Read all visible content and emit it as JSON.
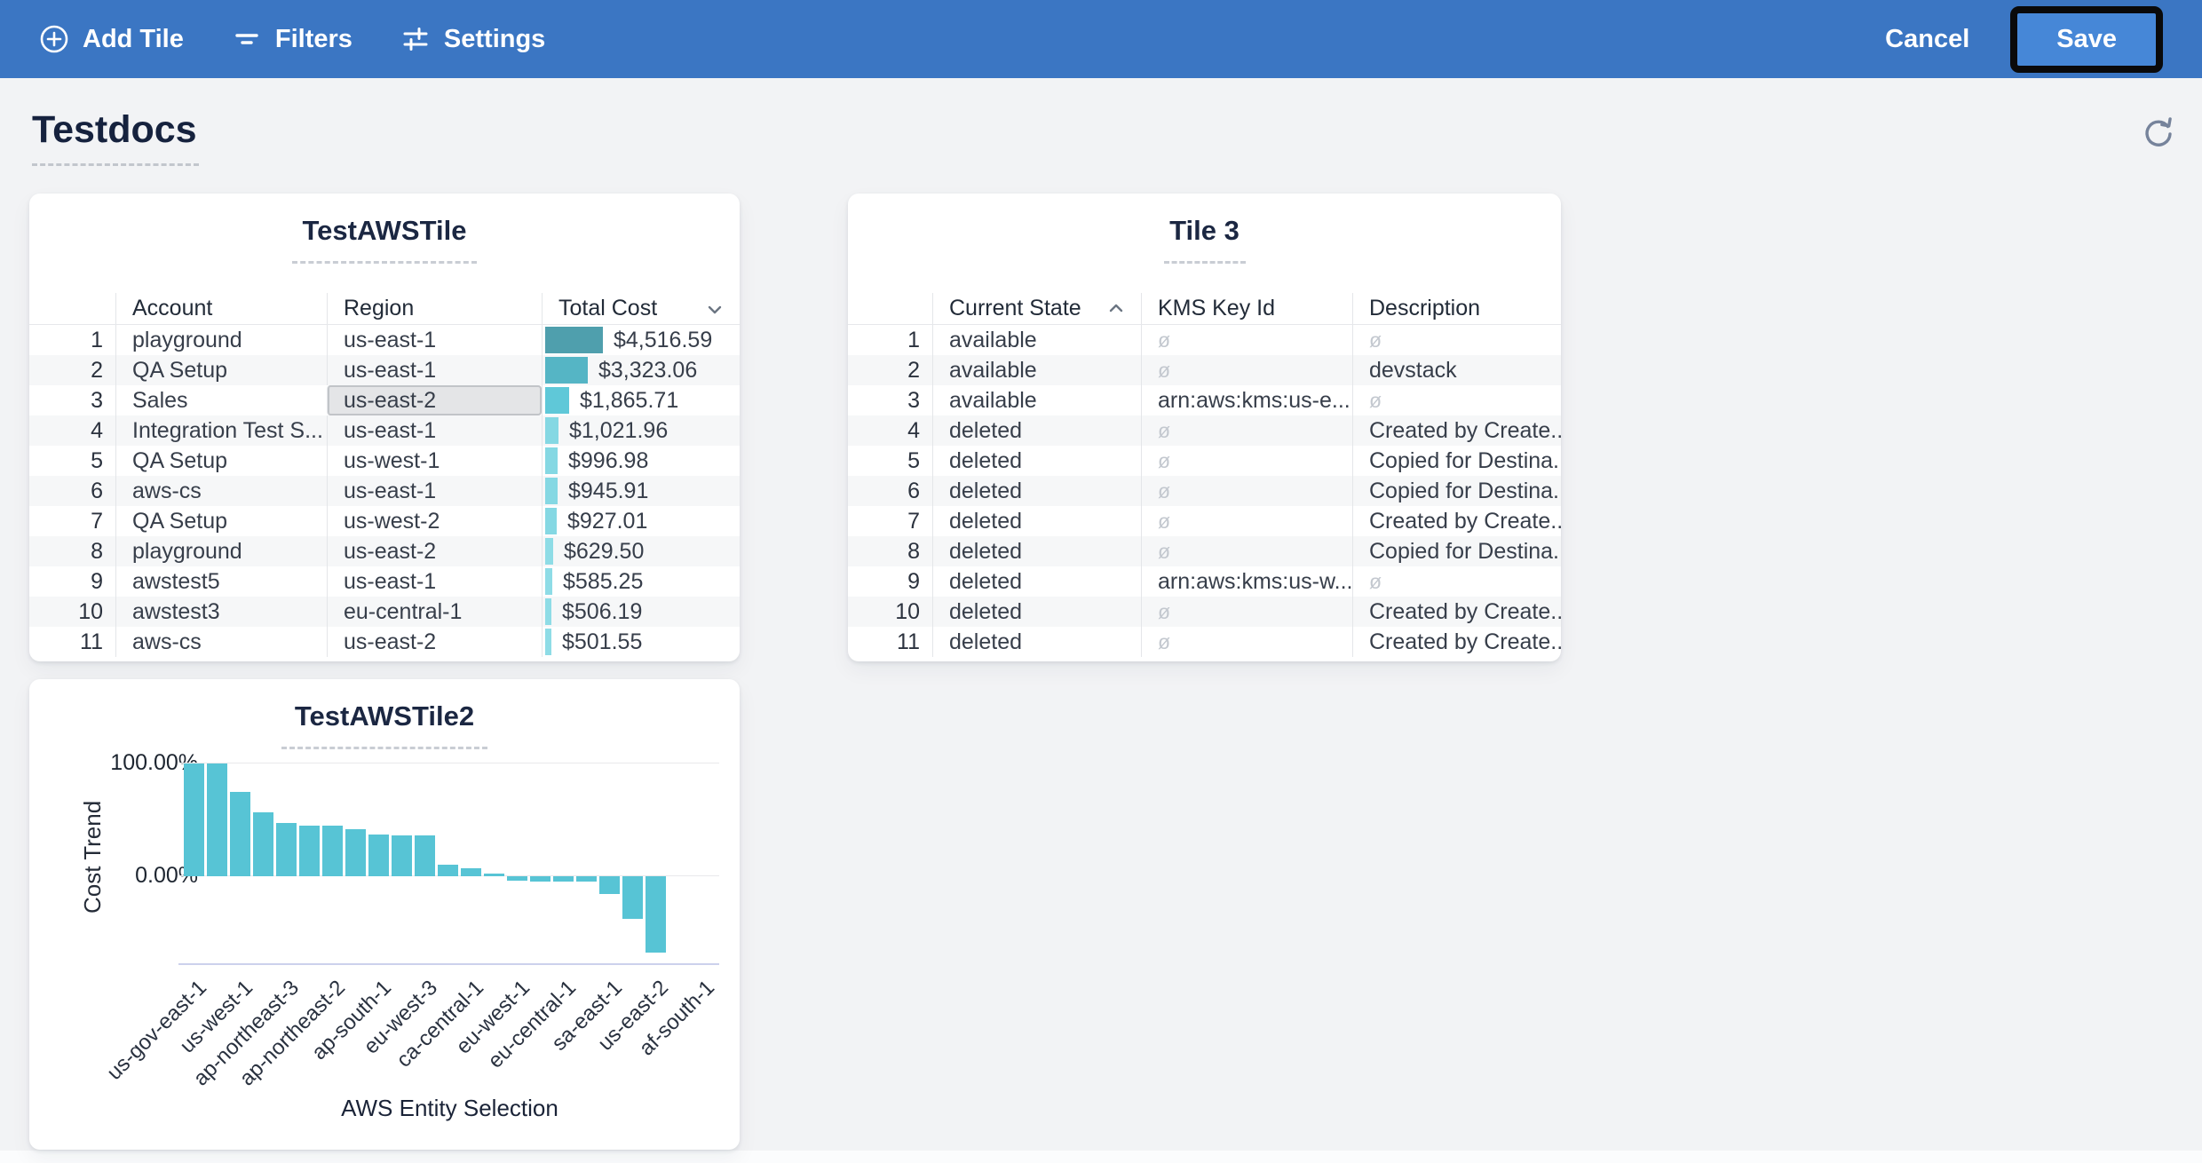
{
  "topbar": {
    "bg_color": "#3b76c3",
    "add_tile_label": "Add Tile",
    "filters_label": "Filters",
    "settings_label": "Settings",
    "cancel_label": "Cancel",
    "save_label": "Save",
    "save_bg_color": "#4687d7",
    "save_highlight_border_color": "#0a0a0a"
  },
  "icons": {
    "add_tile": "plus-circle-icon",
    "filters": "filter-icon",
    "settings": "sliders-icon",
    "refresh": "refresh-icon",
    "tile1_sort": "chevron-down-icon",
    "tile3_sort": "chevron-up-icon"
  },
  "page": {
    "title": "Testdocs"
  },
  "tile1": {
    "title": "TestAWSTile",
    "columns": [
      "Account",
      "Region",
      "Total Cost"
    ],
    "sort": {
      "column": "Total Cost",
      "direction": "desc"
    },
    "max_cost": 4516.59,
    "partial_row_visible": true,
    "rows": [
      {
        "n": "1",
        "account": "playground",
        "region": "us-east-1",
        "cost": "$4,516.59",
        "value": 4516.59,
        "bar_color": "#4f9fad"
      },
      {
        "n": "2",
        "account": "QA Setup",
        "region": "us-east-1",
        "cost": "$3,323.06",
        "value": 3323.06,
        "bar_color": "#55b5c5"
      },
      {
        "n": "3",
        "account": "Sales",
        "region": "us-east-2",
        "cost": "$1,865.71",
        "value": 1865.71,
        "bar_color": "#5fc8d8",
        "region_selected": true
      },
      {
        "n": "4",
        "account": "Integration Test S...",
        "region": "us-east-1",
        "cost": "$1,021.96",
        "value": 1021.96,
        "bar_color": "#85d8e3"
      },
      {
        "n": "5",
        "account": "QA Setup",
        "region": "us-west-1",
        "cost": "$996.98",
        "value": 996.98,
        "bar_color": "#85d8e3"
      },
      {
        "n": "6",
        "account": "aws-cs",
        "region": "us-east-1",
        "cost": "$945.91",
        "value": 945.91,
        "bar_color": "#85d8e3"
      },
      {
        "n": "7",
        "account": "QA Setup",
        "region": "us-west-2",
        "cost": "$927.01",
        "value": 927.01,
        "bar_color": "#85d8e3"
      },
      {
        "n": "8",
        "account": "playground",
        "region": "us-east-2",
        "cost": "$629.50",
        "value": 629.5,
        "bar_color": "#8edce6"
      },
      {
        "n": "9",
        "account": "awstest5",
        "region": "us-east-1",
        "cost": "$585.25",
        "value": 585.25,
        "bar_color": "#8edce6"
      },
      {
        "n": "10",
        "account": "awstest3",
        "region": "eu-central-1",
        "cost": "$506.19",
        "value": 506.19,
        "bar_color": "#8edce6"
      },
      {
        "n": "11",
        "account": "aws-cs",
        "region": "us-east-2",
        "cost": "$501.55",
        "value": 501.55,
        "bar_color": "#8edce6"
      }
    ]
  },
  "tile3": {
    "title": "Tile 3",
    "columns": [
      "Current State",
      "KMS Key Id",
      "Description"
    ],
    "sort": {
      "column": "Current State",
      "direction": "asc"
    },
    "null_symbol": "ø",
    "rows": [
      {
        "n": "1",
        "state": "available",
        "kms": null,
        "desc": null
      },
      {
        "n": "2",
        "state": "available",
        "kms": null,
        "desc": "devstack"
      },
      {
        "n": "3",
        "state": "available",
        "kms": "arn:aws:kms:us-e...",
        "desc": null
      },
      {
        "n": "4",
        "state": "deleted",
        "kms": null,
        "desc": "Created by Create..."
      },
      {
        "n": "5",
        "state": "deleted",
        "kms": null,
        "desc": "Copied for Destina..."
      },
      {
        "n": "6",
        "state": "deleted",
        "kms": null,
        "desc": "Copied for Destina..."
      },
      {
        "n": "7",
        "state": "deleted",
        "kms": null,
        "desc": "Created by Create..."
      },
      {
        "n": "8",
        "state": "deleted",
        "kms": null,
        "desc": "Copied for Destina..."
      },
      {
        "n": "9",
        "state": "deleted",
        "kms": "arn:aws:kms:us-w...",
        "desc": null
      },
      {
        "n": "10",
        "state": "deleted",
        "kms": null,
        "desc": "Created by Create..."
      },
      {
        "n": "11",
        "state": "deleted",
        "kms": null,
        "desc": "Created by Create..."
      }
    ]
  },
  "chart_data": {
    "type": "bar",
    "title": "TestAWSTile2",
    "xlabel": "AWS Entity Selection",
    "ylabel": "Cost Trend",
    "y_tick_labels": [
      "100.00%",
      "0.00%"
    ],
    "ylim": [
      -75,
      110
    ],
    "grid": "horizontal",
    "bar_color": "#57c4d5",
    "x_tick_labels": [
      "us-gov-east-1",
      "us-west-1",
      "ap-northeast-3",
      "ap-northeast-2",
      "ap-south-1",
      "eu-west-3",
      "ca-central-1",
      "eu-west-1",
      "eu-central-1",
      "sa-east-1",
      "us-east-2",
      "af-south-1"
    ],
    "values": [
      100,
      100,
      75,
      57,
      47,
      45,
      45,
      42,
      37,
      36,
      36,
      10,
      7,
      2,
      -4,
      -5,
      -5,
      -5,
      -16,
      -38,
      -68
    ]
  }
}
